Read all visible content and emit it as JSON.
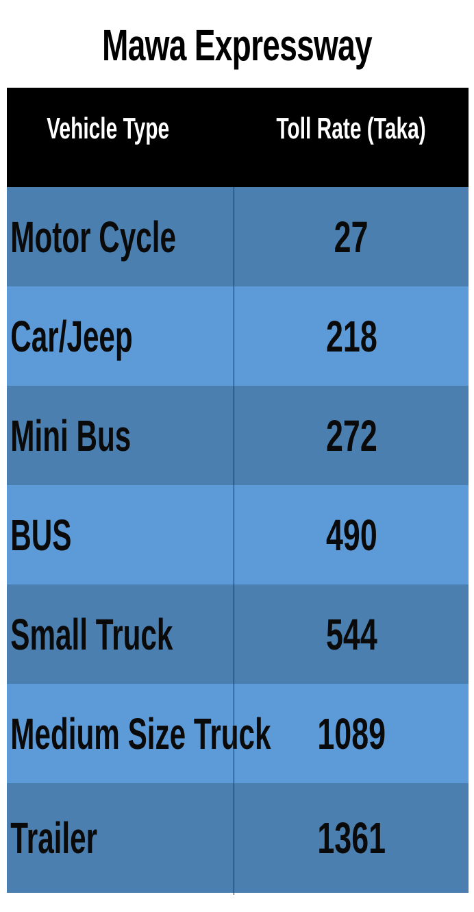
{
  "title": "Mawa Expressway",
  "colors": {
    "header_bg": "#000000",
    "header_text": "#ffffff",
    "row_dark": "#4a7fb0",
    "row_light": "#5c9bd8",
    "cell_text": "#0a0a0a"
  },
  "chart_data": {
    "type": "table",
    "title": "Mawa Expressway",
    "columns": [
      "Vehicle Type",
      "Toll Rate (Taka)"
    ],
    "rows": [
      {
        "vehicle": "Motor Cycle",
        "toll": "27"
      },
      {
        "vehicle": "Car/Jeep",
        "toll": "218"
      },
      {
        "vehicle": "Mini Bus",
        "toll": "272"
      },
      {
        "vehicle": "BUS",
        "toll": "490"
      },
      {
        "vehicle": "Small Truck",
        "toll": "544"
      },
      {
        "vehicle": "Medium Size Truck",
        "toll": "1089"
      },
      {
        "vehicle": "Trailer",
        "toll": "1361"
      }
    ]
  }
}
